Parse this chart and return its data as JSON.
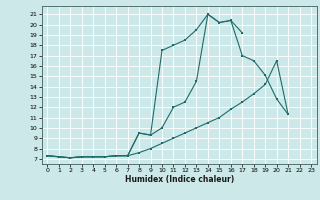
{
  "xlabel": "Humidex (Indice chaleur)",
  "bg_color": "#cce8e8",
  "line_color": "#1e6b6b",
  "grid_color": "#b0d0d0",
  "xlim": [
    -0.5,
    23.5
  ],
  "ylim": [
    6.5,
    21.8
  ],
  "xticks": [
    0,
    1,
    2,
    3,
    4,
    5,
    6,
    7,
    8,
    9,
    10,
    11,
    12,
    13,
    14,
    15,
    16,
    17,
    18,
    19,
    20,
    21,
    22,
    23
  ],
  "yticks": [
    7,
    8,
    9,
    10,
    11,
    12,
    13,
    14,
    15,
    16,
    17,
    18,
    19,
    20,
    21
  ],
  "curve1_x": [
    0,
    1,
    2,
    3,
    4,
    5,
    6,
    7,
    8,
    9,
    10,
    11,
    12,
    13,
    14,
    15,
    16,
    17,
    18,
    19,
    20,
    21,
    22
  ],
  "curve1_y": [
    7.3,
    7.2,
    7.1,
    7.2,
    7.2,
    7.2,
    7.3,
    7.3,
    9.5,
    9.3,
    17.5,
    18.0,
    18.5,
    19.5,
    21.0,
    20.2,
    20.4,
    19.2,
    null,
    null,
    null,
    null,
    null
  ],
  "curve2_x": [
    0,
    1,
    2,
    3,
    4,
    5,
    6,
    7,
    8,
    9,
    10,
    11,
    12,
    13,
    14,
    15,
    16,
    17,
    18,
    19,
    20,
    21,
    22
  ],
  "curve2_y": [
    7.3,
    7.2,
    7.1,
    7.2,
    7.2,
    7.2,
    7.3,
    7.3,
    9.5,
    9.3,
    10.0,
    12.0,
    12.5,
    14.5,
    21.0,
    20.2,
    20.4,
    17.0,
    16.5,
    15.1,
    12.8,
    11.3,
    null
  ],
  "curve3_x": [
    0,
    1,
    2,
    3,
    4,
    5,
    6,
    7,
    8,
    9,
    10,
    11,
    12,
    13,
    14,
    15,
    16,
    17,
    18,
    19,
    20,
    21,
    22
  ],
  "curve3_y": [
    7.3,
    7.2,
    7.1,
    7.2,
    7.2,
    7.2,
    7.3,
    7.3,
    7.6,
    8.0,
    8.5,
    9.0,
    9.5,
    10.0,
    10.5,
    11.0,
    11.8,
    12.5,
    13.3,
    14.2,
    16.5,
    11.3,
    null
  ]
}
